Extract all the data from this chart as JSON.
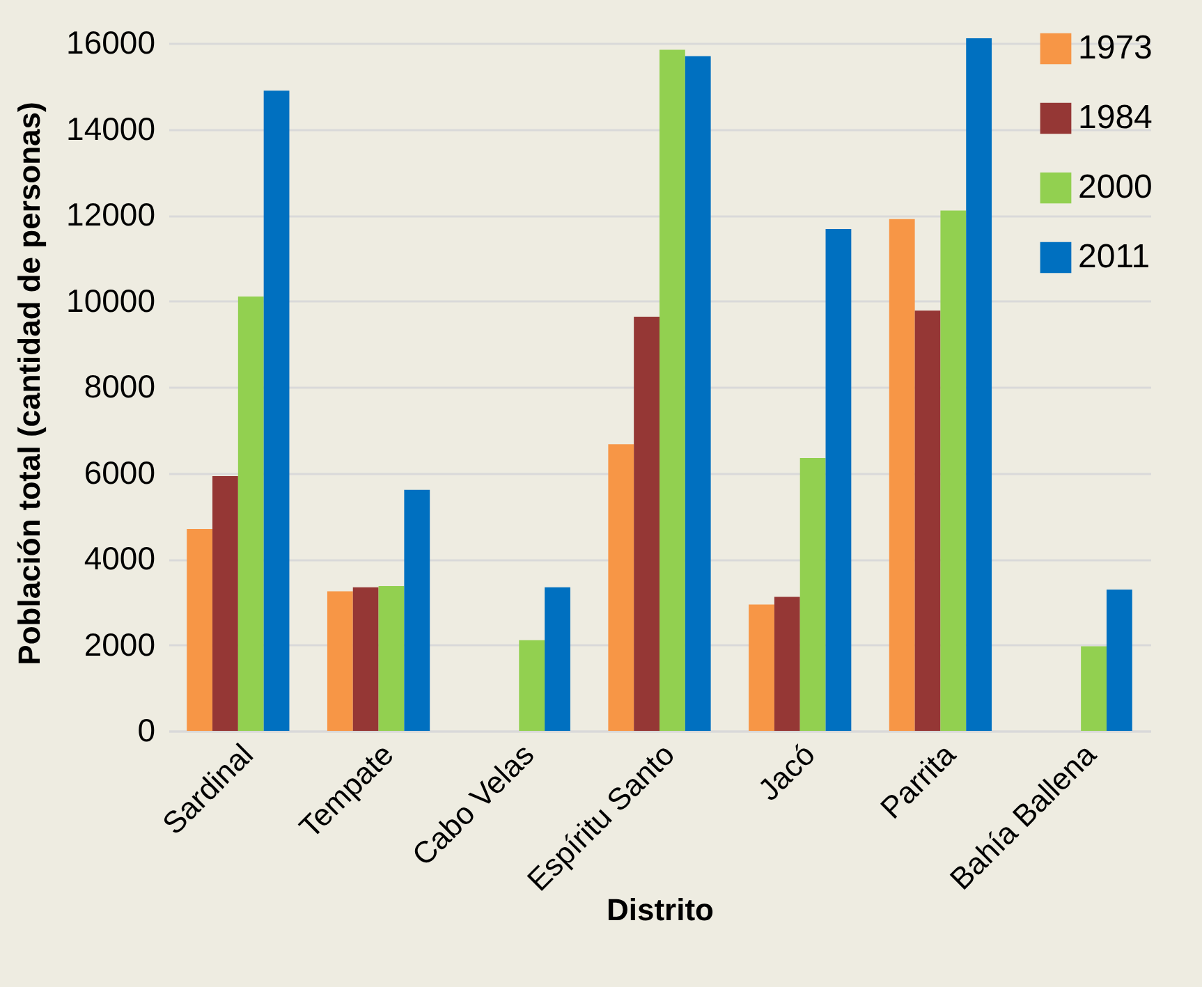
{
  "chart_data": {
    "type": "bar",
    "xlabel": "Distrito",
    "ylabel": "Población total (cantidad de personas)",
    "categories": [
      "Sardinal",
      "Tempate",
      "Cabo Velas",
      "Espíritu Santo",
      "Jacó",
      "Parrita",
      "Bahía Ballena"
    ],
    "series": [
      {
        "name": "1973",
        "color": "#f79646",
        "values": [
          4700,
          3250,
          null,
          6670,
          2940,
          11910,
          null
        ]
      },
      {
        "name": "1984",
        "color": "#953735",
        "values": [
          5930,
          3340,
          null,
          9640,
          3120,
          9780,
          null
        ]
      },
      {
        "name": "2000",
        "color": "#92d050",
        "values": [
          10110,
          3370,
          2110,
          15850,
          6350,
          12110,
          1970
        ]
      },
      {
        "name": "2011",
        "color": "#0070c0",
        "values": [
          14900,
          5610,
          3340,
          15700,
          11680,
          16120,
          3290
        ]
      }
    ],
    "ylim": [
      0,
      16200
    ],
    "yticks": [
      0,
      2000,
      4000,
      6000,
      8000,
      10000,
      12000,
      14000,
      16000
    ],
    "grid": "y",
    "legend": "top right"
  }
}
